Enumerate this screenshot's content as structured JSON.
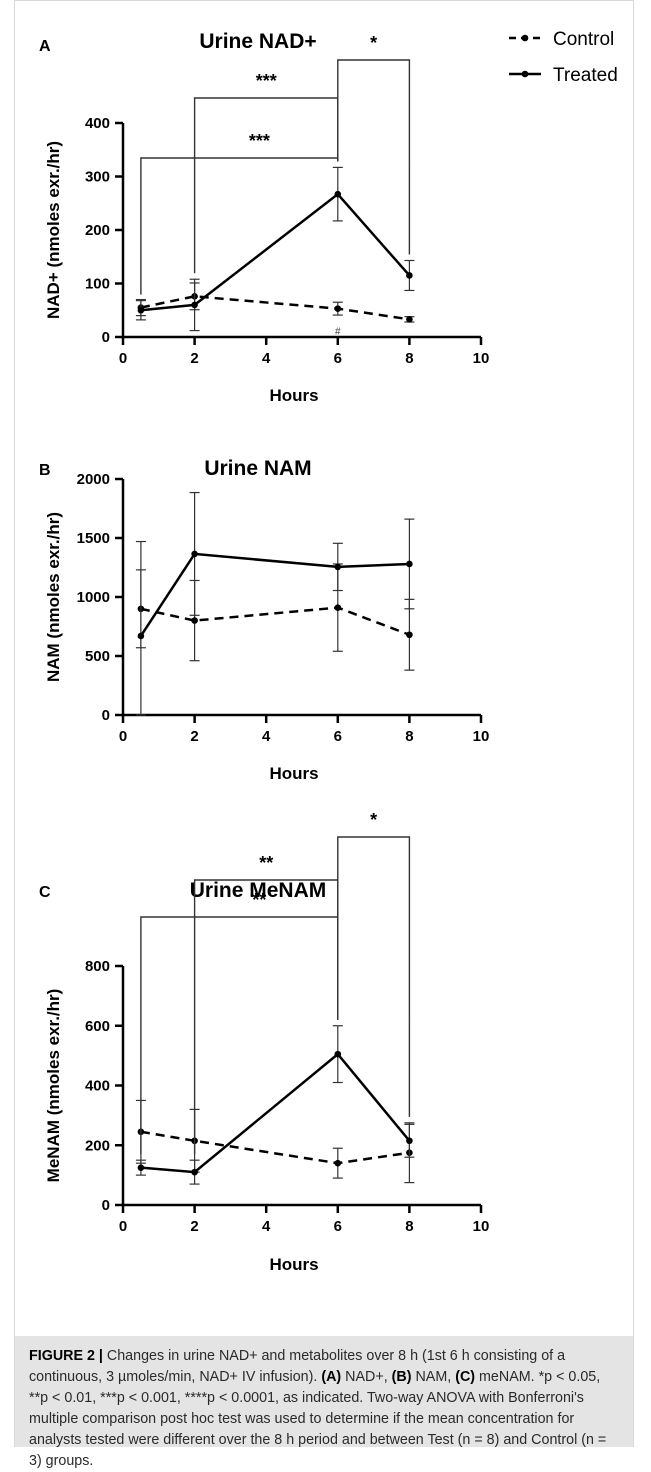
{
  "chart_data": [
    {
      "type": "line",
      "panel_label": "A",
      "title": "Urine NAD+",
      "xlabel": "Hours",
      "ylabel": "NAD+ (nmoles exr./hr)",
      "xlim": [
        0,
        10
      ],
      "ylim": [
        0,
        400
      ],
      "xticks": [
        0,
        2,
        4,
        6,
        8,
        10
      ],
      "yticks": [
        0,
        100,
        200,
        300,
        400
      ],
      "legend": {
        "position": "top-right",
        "entries": [
          "Control",
          "Treated"
        ]
      },
      "series": [
        {
          "name": "Control",
          "style": "dashed",
          "x": [
            0.5,
            2,
            6,
            8
          ],
          "y": [
            55,
            76,
            53,
            33
          ],
          "err": [
            15,
            25,
            12,
            5
          ]
        },
        {
          "name": "Treated",
          "style": "solid",
          "x": [
            0.5,
            2,
            6,
            8
          ],
          "y": [
            50,
            60,
            267,
            115
          ],
          "err": [
            18,
            48,
            50,
            28
          ]
        }
      ],
      "annotations": [
        {
          "text": "***",
          "from": 0.5,
          "to": 6
        },
        {
          "text": "***",
          "from": 2,
          "to": 6
        },
        {
          "text": "*",
          "from": 6,
          "to": 8
        },
        {
          "text": "#",
          "x": 6
        }
      ]
    },
    {
      "type": "line",
      "panel_label": "B",
      "title": "Urine NAM",
      "xlabel": "Hours",
      "ylabel": "NAM (nmoles exr./hr)",
      "xlim": [
        0,
        10
      ],
      "ylim": [
        0,
        2000
      ],
      "xticks": [
        0,
        2,
        4,
        6,
        8,
        10
      ],
      "yticks": [
        0,
        500,
        1000,
        1500,
        2000
      ],
      "series": [
        {
          "name": "Control",
          "style": "dashed",
          "x": [
            0.5,
            2,
            6,
            8
          ],
          "y": [
            900,
            800,
            910,
            680
          ],
          "err": [
            330,
            340,
            370,
            300
          ]
        },
        {
          "name": "Treated",
          "style": "solid",
          "x": [
            0.5,
            2,
            6,
            8
          ],
          "y": [
            670,
            1365,
            1255,
            1280
          ],
          "err": [
            800,
            520,
            200,
            380
          ]
        }
      ],
      "annotations": []
    },
    {
      "type": "line",
      "panel_label": "C",
      "title": "Urine MeNAM",
      "xlabel": "Hours",
      "ylabel": "MeNAM (nmoles exr./hr)",
      "xlim": [
        0,
        10
      ],
      "ylim": [
        0,
        800
      ],
      "xticks": [
        0,
        2,
        4,
        6,
        8,
        10
      ],
      "yticks": [
        0,
        200,
        400,
        600,
        800
      ],
      "series": [
        {
          "name": "Control",
          "style": "dashed",
          "x": [
            0.5,
            2,
            6,
            8
          ],
          "y": [
            245,
            215,
            140,
            175
          ],
          "err": [
            105,
            105,
            50,
            100
          ]
        },
        {
          "name": "Treated",
          "style": "solid",
          "x": [
            0.5,
            2,
            6,
            8
          ],
          "y": [
            125,
            110,
            505,
            215
          ],
          "err": [
            25,
            40,
            95,
            55
          ]
        }
      ],
      "annotations": [
        {
          "text": "**",
          "from": 0.5,
          "to": 6
        },
        {
          "text": "**",
          "from": 2,
          "to": 6
        },
        {
          "text": "*",
          "from": 6,
          "to": 8
        }
      ]
    }
  ],
  "caption": {
    "label": "FIGURE 2 |",
    "body": " Changes in urine NAD+ and metabolites over 8 h (1st 6 h consisting of a continuous, 3 µmoles/min, NAD+ IV infusion). ",
    "a_label": "(A)",
    "a_text": " NAD+, ",
    "b_label": "(B)",
    "b_text": " NAM, ",
    "c_label": "(C)",
    "c_text": " meNAM. *p < 0.05, **p < 0.01, ***p < 0.001, ****p < 0.0001, as indicated. Two-way ANOVA with Bonferroni's multiple comparison post hoc test was used to determine if the mean concentration for analysts tested were different over the 8 h period and between Test (n = 8) and Control (n = 3) groups."
  }
}
